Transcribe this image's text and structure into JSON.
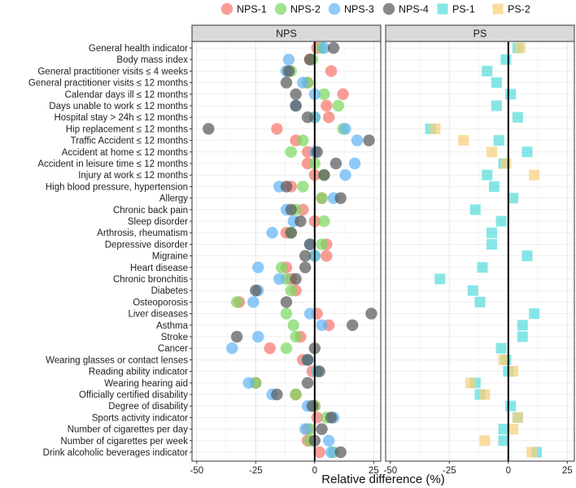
{
  "chart_data": {
    "type": "scatter",
    "xlabel": "Relative difference (%)",
    "ylabel": "",
    "xlim": [
      -52,
      28
    ],
    "xticks": [
      -50,
      -25,
      0,
      25
    ],
    "xtick_labels": [
      "-50",
      "-25",
      "0",
      "25"
    ],
    "reference_line": 0,
    "legend_position": "top",
    "panels": [
      {
        "key": "NPS",
        "title": "NPS",
        "series": [
          "NPS-1",
          "NPS-2",
          "NPS-3",
          "NPS-4"
        ]
      },
      {
        "key": "PS",
        "title": "PS",
        "series": [
          "PS-1",
          "PS-2"
        ]
      }
    ],
    "series": [
      {
        "name": "NPS-1",
        "panel": "NPS",
        "shape": "circle",
        "color": "#F8766D",
        "values": [
          1,
          -2,
          7,
          -3,
          12,
          5,
          6,
          -16,
          -8,
          -3,
          -3,
          0,
          -10,
          3,
          -5,
          0,
          -12,
          5,
          5,
          -12,
          -10,
          -8,
          -32,
          1,
          6,
          -6,
          -19,
          -5,
          -1,
          -25,
          -8,
          0,
          1,
          -3,
          -3,
          2
        ]
      },
      {
        "name": "NPS-2",
        "panel": "NPS",
        "shape": "circle",
        "color": "#7CDA62",
        "values": [
          3,
          -1,
          -10,
          -3,
          4,
          10,
          0,
          12,
          -5,
          -10,
          0,
          4,
          -5,
          3,
          -8,
          4,
          -10,
          3,
          0,
          -14,
          -12,
          -10,
          -33,
          -12,
          -9,
          -8,
          -12,
          -3,
          1,
          -25,
          -8,
          0,
          5,
          -2,
          -2,
          8
        ]
      },
      {
        "name": "NPS-3",
        "panel": "NPS",
        "shape": "circle",
        "color": "#64B5F6",
        "values": [
          4,
          -11,
          -12,
          -5,
          0,
          -8,
          0,
          13,
          18,
          0,
          17,
          13,
          -15,
          8,
          -12,
          -9,
          -18,
          -2,
          0,
          -24,
          -15,
          -24,
          -26,
          -2,
          3,
          -24,
          -35,
          -3,
          1,
          -28,
          -18,
          -3,
          8,
          -4,
          6,
          7
        ]
      },
      {
        "name": "NPS-4",
        "panel": "NPS",
        "shape": "circle",
        "color": "#5A5A5A",
        "values": [
          8,
          -2,
          -11,
          -12,
          -8,
          -8,
          -3,
          -45,
          23,
          1,
          9,
          4,
          -12,
          11,
          -10,
          -6,
          -10,
          -2,
          -4,
          -4,
          -8,
          -25,
          -12,
          24,
          16,
          -33,
          0,
          -3,
          2,
          -3,
          -16,
          -1,
          7,
          3,
          0,
          11
        ]
      },
      {
        "name": "PS-1",
        "panel": "PS",
        "shape": "square",
        "color": "#57DDDD",
        "values": [
          4,
          -1,
          -9,
          -5,
          1,
          -5,
          4,
          -33,
          -4,
          8,
          -2,
          -9,
          -6,
          2,
          -14,
          -3,
          -7,
          -7,
          8,
          -11,
          -29,
          -15,
          -12,
          11,
          6,
          6,
          -3,
          -1,
          0,
          -14,
          -12,
          1,
          4,
          -2,
          -2,
          12
        ]
      },
      {
        "name": "PS-2",
        "panel": "PS",
        "shape": "square",
        "color": "#F7D07A",
        "values": [
          5,
          null,
          null,
          null,
          null,
          null,
          null,
          -31,
          -19,
          -7,
          -1,
          11,
          null,
          null,
          null,
          null,
          null,
          null,
          null,
          null,
          null,
          null,
          null,
          null,
          null,
          null,
          null,
          -2,
          2,
          -16,
          -10,
          null,
          4,
          2,
          -10,
          10
        ]
      }
    ],
    "categories": [
      "General health indicator",
      "Body mass index",
      "General practitioner visits ≤ 4 weeks",
      "General practitioner visits ≤ 12 months",
      "Calendar days ill ≤ 12 months",
      "Days unable to work ≤ 12 months",
      "Hospital stay > 24h ≤ 12 months",
      "Hip replacement ≤ 12 months",
      "Traffic Accident ≤ 12 months",
      "Accident at home ≤ 12 months",
      "Accident in leisure time ≤ 12 months",
      "Injury at work ≤ 12 months",
      "High blood pressure, hypertension",
      "Allergy",
      "Chronic back pain",
      "Sleep disorder",
      "Arthrosis, rheumatism",
      "Depressive disorder",
      "Migraine",
      "Heart disease",
      "Chronic bronchitis",
      "Diabetes",
      "Osteoporosis",
      "Liver diseases",
      "Asthma",
      "Stroke",
      "Cancer",
      "Wearing glasses or contact lenses",
      "Reading ability indicator",
      "Wearing hearing aid",
      "Officially certified disability",
      "Degree of disability",
      "Sports activity indicator",
      "Number of cigarettes per day",
      "Number of cigarettes per week",
      "Drink alcoholic beverages indicator"
    ]
  }
}
